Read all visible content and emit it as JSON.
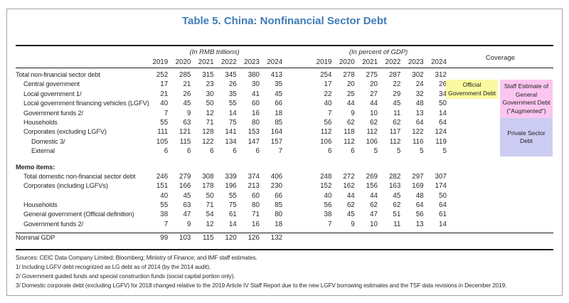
{
  "title": "Table 5. China: Nonfinancial Sector Debt",
  "colors": {
    "title": "#3f7cb6",
    "rule": "#1c1c1c"
  },
  "header": {
    "rmb_group_label": "(In RMB trillions)",
    "gdp_group_label": "(In percent of GDP)",
    "coverage_label": "Coverage",
    "years": [
      "2019",
      "2020",
      "2021",
      "2022",
      "2023",
      "2024"
    ]
  },
  "main_rows": [
    {
      "label": "Total non-financial sector debt",
      "indent": 0,
      "rmb": [
        "252",
        "285",
        "315",
        "345",
        "380",
        "413"
      ],
      "gdp": [
        "254",
        "278",
        "275",
        "287",
        "302",
        "312"
      ]
    },
    {
      "label": "Central government",
      "indent": 1,
      "rmb": [
        "17",
        "21",
        "23",
        "26",
        "30",
        "35"
      ],
      "gdp": [
        "17",
        "20",
        "20",
        "22",
        "24",
        "26"
      ]
    },
    {
      "label": "Local government 1/",
      "indent": 1,
      "rmb": [
        "21",
        "26",
        "30",
        "35",
        "41",
        "45"
      ],
      "gdp": [
        "22",
        "25",
        "27",
        "29",
        "32",
        "34"
      ]
    },
    {
      "label": "Local government financing vehicles (LGFV)",
      "indent": 1,
      "rmb": [
        "40",
        "45",
        "50",
        "55",
        "60",
        "66"
      ],
      "gdp": [
        "40",
        "44",
        "44",
        "45",
        "48",
        "50"
      ]
    },
    {
      "label": "Government funds 2/",
      "indent": 1,
      "rmb": [
        "7",
        "9",
        "12",
        "14",
        "16",
        "18"
      ],
      "gdp": [
        "7",
        "9",
        "10",
        "11",
        "13",
        "14"
      ]
    },
    {
      "label": "Households",
      "indent": 1,
      "rmb": [
        "55",
        "63",
        "71",
        "75",
        "80",
        "85"
      ],
      "gdp": [
        "56",
        "62",
        "62",
        "62",
        "64",
        "64"
      ]
    },
    {
      "label": "Corporates (excluding LGFV)",
      "indent": 1,
      "rmb": [
        "111",
        "121",
        "128",
        "141",
        "153",
        "164"
      ],
      "gdp": [
        "112",
        "118",
        "112",
        "117",
        "122",
        "124"
      ]
    },
    {
      "label": "Domestic 3/",
      "indent": 2,
      "rmb": [
        "105",
        "115",
        "122",
        "134",
        "147",
        "157"
      ],
      "gdp": [
        "106",
        "112",
        "106",
        "112",
        "116",
        "119"
      ]
    },
    {
      "label": "External",
      "indent": 2,
      "rmb": [
        "6",
        "6",
        "6",
        "6",
        "6",
        "7"
      ],
      "gdp": [
        "6",
        "6",
        "5",
        "5",
        "5",
        "5"
      ]
    }
  ],
  "memo": {
    "heading": "Memo items:",
    "rows": [
      {
        "label": "Total domestic non-financial sector debt",
        "indent": 1,
        "rmb": [
          "246",
          "279",
          "308",
          "339",
          "374",
          "406"
        ],
        "gdp": [
          "248",
          "272",
          "269",
          "282",
          "297",
          "307"
        ]
      },
      {
        "label": "Corporates (including LGFVs)",
        "indent": 1,
        "rmb": [
          "151",
          "166",
          "178",
          "196",
          "213",
          "230"
        ],
        "gdp": [
          "152",
          "162",
          "156",
          "163",
          "169",
          "174"
        ]
      },
      {
        "label": "",
        "indent": 1,
        "rmb": [
          "40",
          "45",
          "50",
          "55",
          "60",
          "66"
        ],
        "gdp": [
          "40",
          "44",
          "44",
          "45",
          "48",
          "50"
        ]
      },
      {
        "label": "Households",
        "indent": 1,
        "rmb": [
          "55",
          "63",
          "71",
          "75",
          "80",
          "85"
        ],
        "gdp": [
          "56",
          "62",
          "62",
          "62",
          "64",
          "64"
        ]
      },
      {
        "label": "General government (Official definition)",
        "indent": 1,
        "rmb": [
          "38",
          "47",
          "54",
          "61",
          "71",
          "80"
        ],
        "gdp": [
          "38",
          "45",
          "47",
          "51",
          "56",
          "61"
        ]
      },
      {
        "label": "Government funds 2/",
        "indent": 1,
        "rmb": [
          "7",
          "9",
          "12",
          "14",
          "16",
          "18"
        ],
        "gdp": [
          "7",
          "9",
          "10",
          "11",
          "13",
          "14"
        ]
      }
    ]
  },
  "nominal_gdp_row": {
    "label": "Nominal GDP",
    "indent": 0,
    "rmb": [
      "99",
      "103",
      "115",
      "120",
      "126",
      "132"
    ],
    "gdp": [
      "",
      "",
      "",
      "",
      "",
      ""
    ]
  },
  "coverage_boxes": [
    {
      "name": "official-government-debt",
      "label": "Official Government Debt",
      "color": "#fbf9a0"
    },
    {
      "name": "augmented-government-debt",
      "label": "Staff Estimate of General Government Debt (\"Augmented\")",
      "color": "#fbc6f0"
    },
    {
      "name": "private-sector-debt",
      "label": "Private Sector Debt",
      "color": "#cdccf2"
    }
  ],
  "footnotes": [
    "Sources: CEIC Data Company Limited; Bloomberg; Ministry of Finance; and IMF staff estimates.",
    "1/ Including LGFV debt recognized as LG debt as of 2014 (by the 2014 audit).",
    "2/ Government guided funds and special construction funds (social capital portion only).",
    "3/ Domestic corporate debt (excluding LGFV) for 2018 changed relative to the 2019 Article IV Staff Report due to the new LGFV borrowing estimates and the TSF data revisions in December 2019."
  ]
}
